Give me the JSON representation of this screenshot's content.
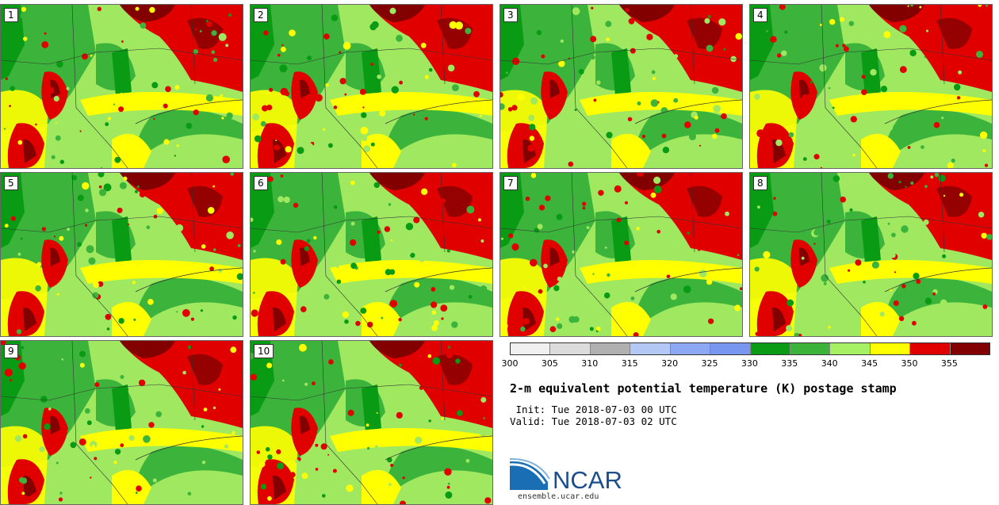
{
  "panels": [
    {
      "label": "1"
    },
    {
      "label": "2"
    },
    {
      "label": "3"
    },
    {
      "label": "4"
    },
    {
      "label": "5"
    },
    {
      "label": "6"
    },
    {
      "label": "7"
    },
    {
      "label": "8"
    },
    {
      "label": "9"
    },
    {
      "label": "10"
    }
  ],
  "legend": {
    "colors": [
      "#f0f0f0",
      "#dcdcdc",
      "#b0b0b0",
      "#b4c8f5",
      "#8ca8f5",
      "#7896f0",
      "#0a9b14",
      "#3cb43c",
      "#a5f064",
      "#ffff00",
      "#e10000",
      "#820000"
    ],
    "ticks": [
      "300",
      "305",
      "310",
      "315",
      "320",
      "325",
      "330",
      "335",
      "340",
      "345",
      "350",
      "355"
    ]
  },
  "title": "2-m equivalent potential temperature (K) postage stamp",
  "init": " Init: Tue 2018-07-03 00 UTC",
  "valid": "Valid: Tue 2018-07-03 02 UTC",
  "logo": {
    "text": "NCAR",
    "url": "ensemble.ucar.edu"
  }
}
